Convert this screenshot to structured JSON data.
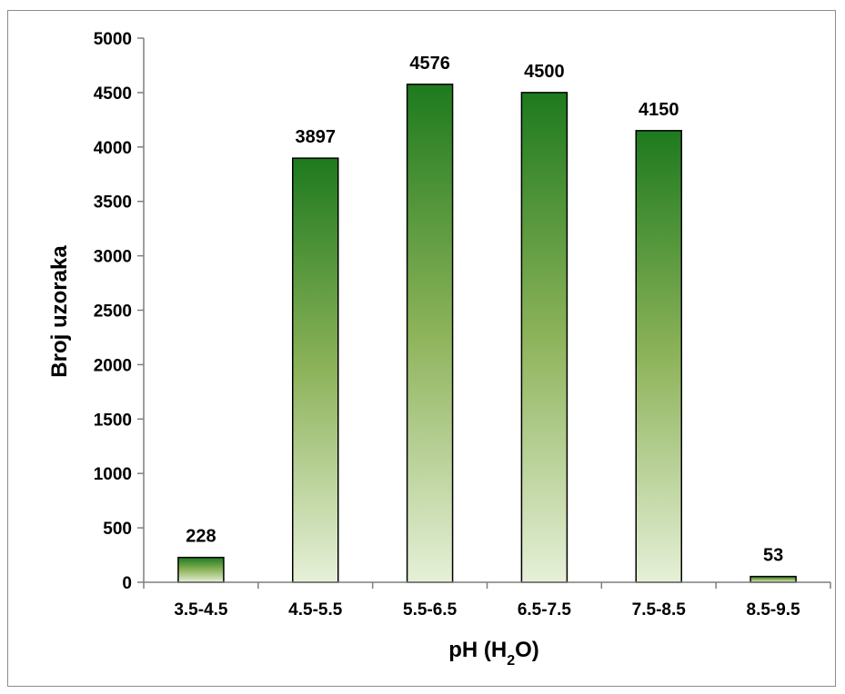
{
  "chart_data": {
    "type": "bar",
    "categories": [
      "3.5-4.5",
      "4.5-5.5",
      "5.5-6.5",
      "6.5-7.5",
      "7.5-8.5",
      "8.5-9.5"
    ],
    "values": [
      228,
      3897,
      4576,
      4500,
      4150,
      53
    ],
    "data_labels": [
      "228",
      "3897",
      "4576",
      "4500",
      "4150",
      "53"
    ],
    "title": "",
    "xlabel": "pH (H",
    "xlabel_subscript": "2",
    "xlabel_suffix": "O)",
    "ylabel": "Broj uzoraka",
    "ylim": [
      0,
      5000
    ],
    "yticks": [
      "0",
      "500",
      "1000",
      "1500",
      "2000",
      "2500",
      "3000",
      "3500",
      "4000",
      "4500",
      "5000"
    ],
    "grid": false,
    "legend": "none",
    "colors": {
      "bar_top": "#1e7a1e",
      "bar_mid": "#8db35a",
      "bar_bottom": "#e6f0d8",
      "bar_stroke": "#000000",
      "axis": "#7f7f7f",
      "frame": "#8c8c8c"
    }
  }
}
